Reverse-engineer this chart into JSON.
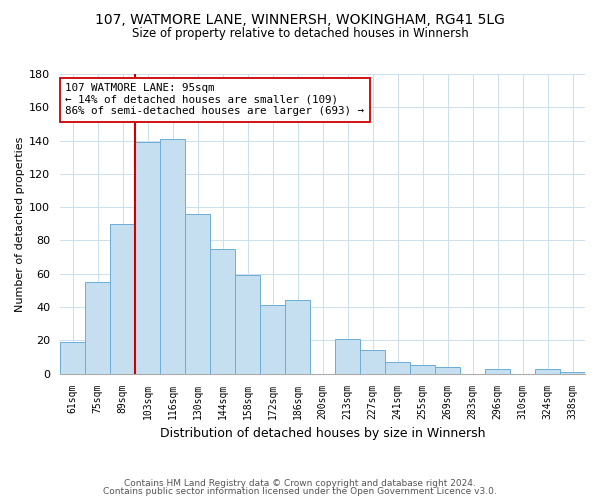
{
  "title": "107, WATMORE LANE, WINNERSH, WOKINGHAM, RG41 5LG",
  "subtitle": "Size of property relative to detached houses in Winnersh",
  "xlabel": "Distribution of detached houses by size in Winnersh",
  "ylabel": "Number of detached properties",
  "bar_labels": [
    "61sqm",
    "75sqm",
    "89sqm",
    "103sqm",
    "116sqm",
    "130sqm",
    "144sqm",
    "158sqm",
    "172sqm",
    "186sqm",
    "200sqm",
    "213sqm",
    "227sqm",
    "241sqm",
    "255sqm",
    "269sqm",
    "283sqm",
    "296sqm",
    "310sqm",
    "324sqm",
    "338sqm"
  ],
  "bar_values": [
    19,
    55,
    90,
    139,
    141,
    96,
    75,
    59,
    41,
    44,
    0,
    21,
    14,
    7,
    5,
    4,
    0,
    3,
    0,
    3,
    1
  ],
  "bar_color": "#c5dff0",
  "bar_edge_color": "#6baed6",
  "ylim": [
    0,
    180
  ],
  "yticks": [
    0,
    20,
    40,
    60,
    80,
    100,
    120,
    140,
    160,
    180
  ],
  "vline_color": "#cc0000",
  "annotation_line1": "107 WATMORE LANE: 95sqm",
  "annotation_line2": "← 14% of detached houses are smaller (109)",
  "annotation_line3": "86% of semi-detached houses are larger (693) →",
  "annotation_box_color": "#ffffff",
  "annotation_box_edge": "#cc0000",
  "footer_line1": "Contains HM Land Registry data © Crown copyright and database right 2024.",
  "footer_line2": "Contains public sector information licensed under the Open Government Licence v3.0.",
  "background_color": "#ffffff",
  "grid_color": "#cce0ee"
}
